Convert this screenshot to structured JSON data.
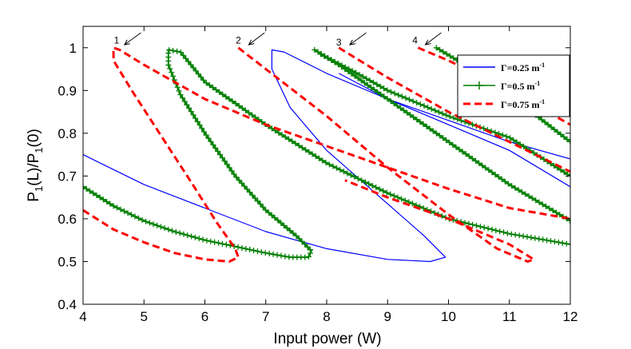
{
  "chart_data": {
    "type": "line",
    "title": "",
    "xlabel": "Input power (W)",
    "ylabel_main": "P",
    "ylabel_sub1": "1",
    "ylabel_mid": "(L)/P",
    "ylabel_sub2": "1",
    "ylabel_end": "(0)",
    "xlim": [
      4,
      12
    ],
    "ylim": [
      0.4,
      1.05
    ],
    "xticks": [
      "4",
      "5",
      "6",
      "7",
      "8",
      "9",
      "10",
      "11",
      "12"
    ],
    "yticks": [
      "0.4",
      "0.5",
      "0.6",
      "0.7",
      "0.8",
      "0.9",
      "1"
    ],
    "xtick_values": [
      4,
      5,
      6,
      7,
      8,
      9,
      10,
      11,
      12
    ],
    "ytick_values": [
      0.4,
      0.5,
      0.6,
      0.7,
      0.8,
      0.9,
      1.0
    ],
    "legend_position": "top-right",
    "series": [
      {
        "name": "Γ=0.25 m⁻¹",
        "legend_main": "Γ=0.25 m",
        "legend_sup": "-1",
        "color": "#0000ff",
        "style": "solid",
        "segments": [
          [
            [
              4.0,
              0.75
            ],
            [
              5.0,
              0.68
            ],
            [
              6.0,
              0.625
            ],
            [
              7.0,
              0.57
            ],
            [
              8.0,
              0.53
            ],
            [
              9.0,
              0.505
            ],
            [
              9.7,
              0.5
            ],
            [
              9.95,
              0.51
            ],
            [
              9.6,
              0.56
            ],
            [
              8.8,
              0.66
            ],
            [
              8.0,
              0.76
            ],
            [
              7.4,
              0.86
            ],
            [
              7.1,
              0.95
            ],
            [
              7.1,
              0.995
            ],
            [
              7.3,
              0.99
            ],
            [
              8.0,
              0.94
            ],
            [
              9.0,
              0.88
            ],
            [
              10.0,
              0.83
            ],
            [
              11.0,
              0.78
            ],
            [
              12.0,
              0.74
            ]
          ],
          [
            [
              8.2,
              0.94
            ],
            [
              9.0,
              0.88
            ],
            [
              10.0,
              0.82
            ],
            [
              11.0,
              0.76
            ],
            [
              12.0,
              0.675
            ]
          ]
        ]
      },
      {
        "name": "Γ=0.5 m⁻¹",
        "legend_main": "Γ=0.5 m",
        "legend_sup": "-1",
        "color": "#007f00",
        "style": "plus-marker",
        "segments": [
          [
            [
              4.0,
              0.675
            ],
            [
              4.5,
              0.63
            ],
            [
              5.0,
              0.595
            ],
            [
              5.5,
              0.57
            ],
            [
              6.0,
              0.55
            ],
            [
              6.5,
              0.535
            ],
            [
              7.0,
              0.52
            ],
            [
              7.4,
              0.51
            ],
            [
              7.7,
              0.51
            ],
            [
              7.75,
              0.525
            ],
            [
              7.5,
              0.56
            ],
            [
              7.0,
              0.62
            ],
            [
              6.5,
              0.7
            ],
            [
              6.0,
              0.8
            ],
            [
              5.6,
              0.89
            ],
            [
              5.4,
              0.96
            ],
            [
              5.4,
              0.995
            ],
            [
              5.6,
              0.99
            ],
            [
              6.0,
              0.92
            ],
            [
              7.0,
              0.82
            ],
            [
              8.0,
              0.73
            ],
            [
              9.0,
              0.66
            ],
            [
              10.0,
              0.6
            ],
            [
              11.0,
              0.565
            ],
            [
              12.0,
              0.54
            ]
          ],
          [
            [
              7.8,
              0.995
            ],
            [
              8.2,
              0.96
            ],
            [
              9.0,
              0.88
            ],
            [
              10.0,
              0.78
            ],
            [
              11.0,
              0.68
            ],
            [
              12.0,
              0.595
            ]
          ],
          [
            [
              7.9,
              0.985
            ],
            [
              8.5,
              0.94
            ],
            [
              9.0,
              0.9
            ],
            [
              10.0,
              0.84
            ],
            [
              11.0,
              0.79
            ],
            [
              12.0,
              0.7
            ]
          ],
          [
            [
              9.8,
              1.0
            ],
            [
              10.5,
              0.94
            ],
            [
              11.0,
              0.89
            ],
            [
              12.0,
              0.78
            ]
          ]
        ]
      },
      {
        "name": "Γ=0.75 m⁻¹",
        "legend_main": "Γ=0.75 m",
        "legend_sup": "-1",
        "color": "#ff0000",
        "style": "dashed",
        "segments": [
          [
            [
              4.0,
              0.62
            ],
            [
              4.5,
              0.575
            ],
            [
              5.0,
              0.545
            ],
            [
              5.5,
              0.52
            ],
            [
              6.0,
              0.505
            ],
            [
              6.4,
              0.5
            ],
            [
              6.55,
              0.51
            ],
            [
              6.5,
              0.53
            ],
            [
              6.2,
              0.59
            ],
            [
              5.8,
              0.68
            ],
            [
              5.3,
              0.79
            ],
            [
              4.8,
              0.9
            ],
            [
              4.5,
              0.97
            ],
            [
              4.5,
              1.0
            ],
            [
              4.6,
              0.995
            ],
            [
              5.0,
              0.96
            ],
            [
              6.0,
              0.88
            ],
            [
              7.0,
              0.82
            ],
            [
              8.0,
              0.77
            ],
            [
              9.0,
              0.72
            ],
            [
              10.0,
              0.67
            ],
            [
              11.0,
              0.625
            ],
            [
              12.0,
              0.6
            ]
          ],
          [
            [
              6.55,
              1.0
            ],
            [
              7.0,
              0.95
            ],
            [
              8.0,
              0.84
            ],
            [
              9.0,
              0.72
            ],
            [
              10.0,
              0.61
            ],
            [
              10.8,
              0.53
            ],
            [
              11.3,
              0.5
            ],
            [
              11.4,
              0.505
            ],
            [
              11.0,
              0.54
            ],
            [
              10.0,
              0.6
            ],
            [
              9.0,
              0.65
            ],
            [
              8.3,
              0.69
            ]
          ],
          [
            [
              8.2,
              1.0
            ],
            [
              9.0,
              0.93
            ],
            [
              10.0,
              0.85
            ],
            [
              11.0,
              0.78
            ],
            [
              12.0,
              0.71
            ]
          ],
          [
            [
              9.5,
              1.0
            ],
            [
              10.0,
              0.97
            ],
            [
              11.0,
              0.9
            ],
            [
              12.0,
              0.82
            ]
          ]
        ]
      }
    ],
    "annotations": [
      {
        "label": "1",
        "x": 4.55,
        "y": 1.01,
        "arrow_from": [
          4.95,
          1.035
        ],
        "arrow_to": [
          4.68,
          1.007
        ]
      },
      {
        "label": "2",
        "x": 6.55,
        "y": 1.01,
        "arrow_from": [
          6.98,
          1.035
        ],
        "arrow_to": [
          6.72,
          1.007
        ]
      },
      {
        "label": "3",
        "x": 8.2,
        "y": 1.005,
        "arrow_from": [
          8.65,
          1.035
        ],
        "arrow_to": [
          8.38,
          1.007
        ]
      },
      {
        "label": "4",
        "x": 9.45,
        "y": 1.01,
        "arrow_from": [
          9.88,
          1.035
        ],
        "arrow_to": [
          9.62,
          1.007
        ]
      }
    ]
  }
}
